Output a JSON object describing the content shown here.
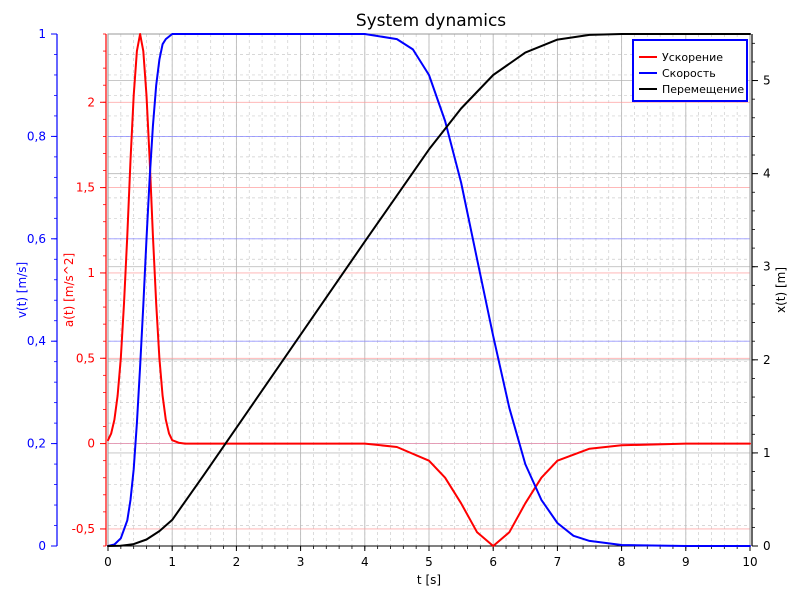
{
  "chart_data": {
    "type": "line",
    "title": "System dynamics",
    "xlabel": "t [s]",
    "xlim": [
      0,
      10
    ],
    "x_ticks": [
      0,
      1,
      2,
      3,
      4,
      5,
      6,
      7,
      8,
      9,
      10
    ],
    "axes": {
      "velocity": {
        "label": "v(t) [m/s]",
        "lim": [
          0,
          1
        ],
        "ticks": [
          0,
          0.2,
          0.4,
          0.6,
          0.8,
          1
        ],
        "tick_labels": [
          "0",
          "0,2",
          "0,4",
          "0,6",
          "0,8",
          "1"
        ],
        "color": "#0000ff",
        "side": "left-outer"
      },
      "acceleration": {
        "label": "a(t) [m/s^2]",
        "lim": [
          -0.6,
          2.4
        ],
        "ticks": [
          -0.5,
          0,
          0.5,
          1,
          1.5,
          2
        ],
        "tick_labels": [
          "-0,5",
          "0",
          "0,5",
          "1",
          "1,5",
          "2"
        ],
        "color": "#ff0000",
        "side": "left-inner"
      },
      "displacement": {
        "label": "x(t) [m]",
        "lim": [
          0,
          5.5
        ],
        "ticks": [
          0,
          1,
          2,
          3,
          4,
          5
        ],
        "tick_labels": [
          "0",
          "1",
          "2",
          "3",
          "4",
          "5"
        ],
        "color": "#000000",
        "side": "right"
      }
    },
    "series": [
      {
        "name": "Ускорение",
        "axis": "acceleration",
        "color": "#ff0000",
        "x": [
          0,
          0.05,
          0.1,
          0.15,
          0.2,
          0.25,
          0.3,
          0.35,
          0.4,
          0.45,
          0.5,
          0.55,
          0.6,
          0.65,
          0.7,
          0.75,
          0.8,
          0.85,
          0.9,
          0.95,
          1.0,
          1.1,
          1.2,
          1.5,
          2,
          3,
          4,
          4.5,
          5,
          5.25,
          5.5,
          5.75,
          6,
          6.25,
          6.5,
          6.75,
          7,
          7.5,
          8,
          9,
          10
        ],
        "y": [
          0.02,
          0.06,
          0.14,
          0.28,
          0.5,
          0.82,
          1.22,
          1.66,
          2.04,
          2.3,
          2.4,
          2.3,
          2.04,
          1.66,
          1.22,
          0.82,
          0.5,
          0.28,
          0.14,
          0.06,
          0.02,
          0.005,
          0,
          0,
          0,
          0,
          0,
          -0.02,
          -0.1,
          -0.2,
          -0.35,
          -0.52,
          -0.6,
          -0.52,
          -0.35,
          -0.2,
          -0.1,
          -0.03,
          -0.01,
          0,
          0
        ]
      },
      {
        "name": "Скорость",
        "axis": "velocity",
        "color": "#0000ff",
        "x": [
          0,
          0.1,
          0.2,
          0.3,
          0.35,
          0.4,
          0.45,
          0.5,
          0.55,
          0.6,
          0.65,
          0.7,
          0.75,
          0.8,
          0.85,
          0.9,
          1.0,
          1.1,
          1.2,
          1.5,
          3,
          4,
          4.5,
          4.75,
          5,
          5.25,
          5.5,
          5.75,
          6,
          6.25,
          6.5,
          6.75,
          7,
          7.25,
          7.5,
          8,
          9,
          10
        ],
        "y": [
          0,
          0.003,
          0.015,
          0.05,
          0.09,
          0.15,
          0.24,
          0.35,
          0.47,
          0.6,
          0.72,
          0.82,
          0.9,
          0.95,
          0.98,
          0.99,
          1,
          1,
          1,
          1,
          1,
          1,
          0.99,
          0.97,
          0.92,
          0.83,
          0.71,
          0.56,
          0.41,
          0.27,
          0.16,
          0.09,
          0.045,
          0.02,
          0.01,
          0.002,
          0,
          0
        ]
      },
      {
        "name": "Перемещение",
        "axis": "displacement",
        "color": "#000000",
        "x": [
          0,
          0.2,
          0.4,
          0.6,
          0.8,
          1,
          1.5,
          2,
          3,
          4,
          5,
          5.5,
          6,
          6.5,
          7,
          7.5,
          8,
          9,
          10
        ],
        "y": [
          0,
          0.002,
          0.02,
          0.07,
          0.16,
          0.28,
          0.77,
          1.27,
          2.27,
          3.27,
          4.26,
          4.7,
          5.06,
          5.3,
          5.44,
          5.49,
          5.5,
          5.5,
          5.5
        ]
      }
    ],
    "legend_position": "top-right",
    "grid": true
  }
}
